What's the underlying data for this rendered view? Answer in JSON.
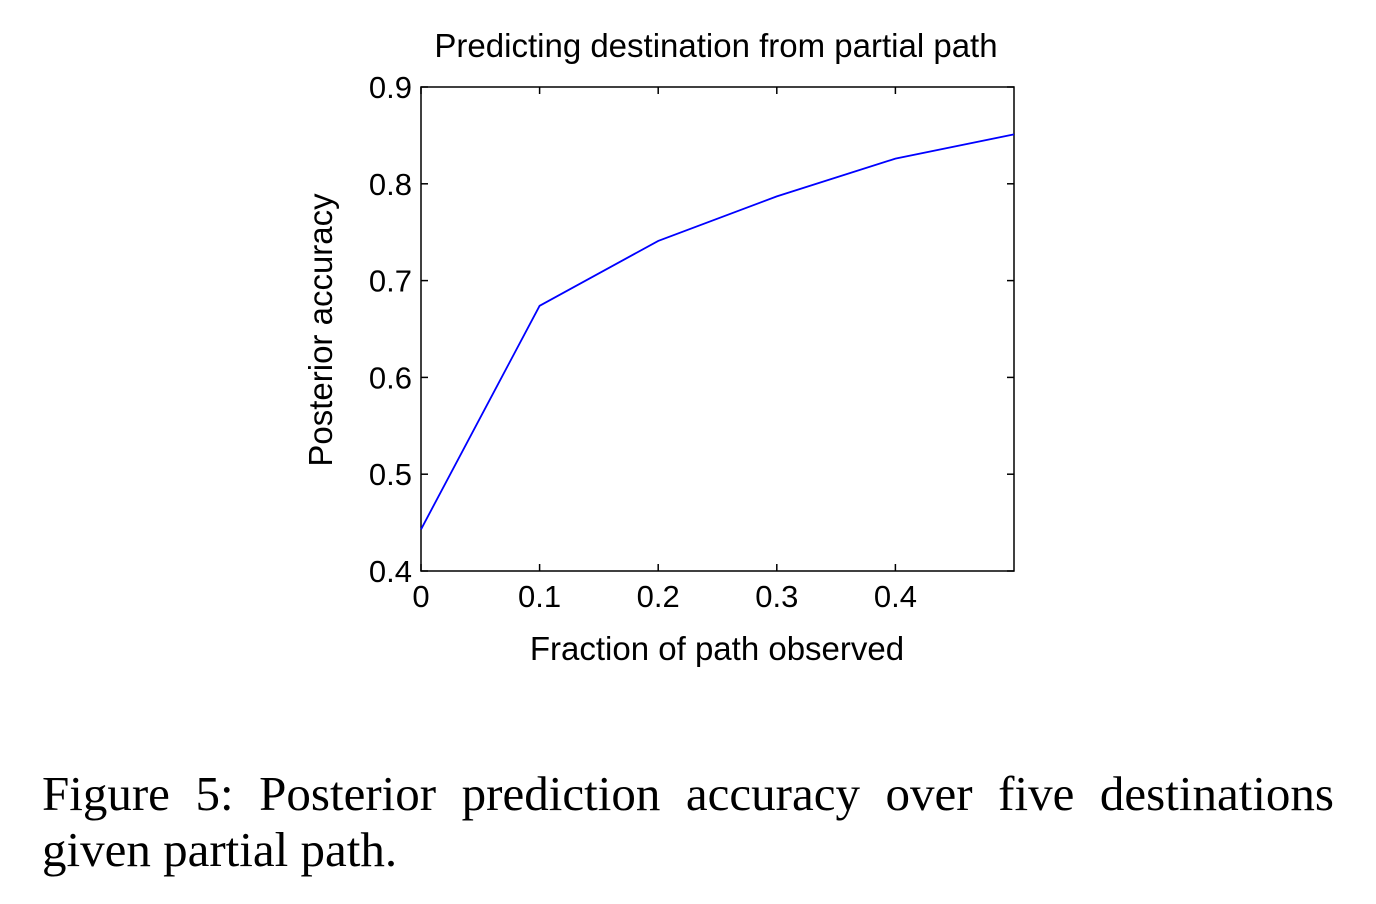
{
  "chart_data": {
    "type": "line",
    "title": "Predicting destination from partial path",
    "xlabel": "Fraction of path observed",
    "ylabel": "Posterior accuracy",
    "xlim": [
      0,
      0.5
    ],
    "ylim": [
      0.4,
      0.9
    ],
    "xticks": [
      0,
      0.1,
      0.2,
      0.3,
      0.4
    ],
    "xtick_labels": [
      "0",
      "0.1",
      "0.2",
      "0.3",
      "0.4"
    ],
    "yticks": [
      0.4,
      0.5,
      0.6,
      0.7,
      0.8,
      0.9
    ],
    "ytick_labels": [
      "0.4",
      "0.5",
      "0.6",
      "0.7",
      "0.8",
      "0.9"
    ],
    "grid": false,
    "series": [
      {
        "color": "#0000ff",
        "x": [
          0,
          0.1,
          0.2,
          0.3,
          0.4,
          0.5
        ],
        "y": [
          0.443,
          0.674,
          0.741,
          0.787,
          0.826,
          0.851
        ]
      }
    ]
  },
  "caption": "Figure 5: Posterior prediction accuracy over five destinations given partial path."
}
